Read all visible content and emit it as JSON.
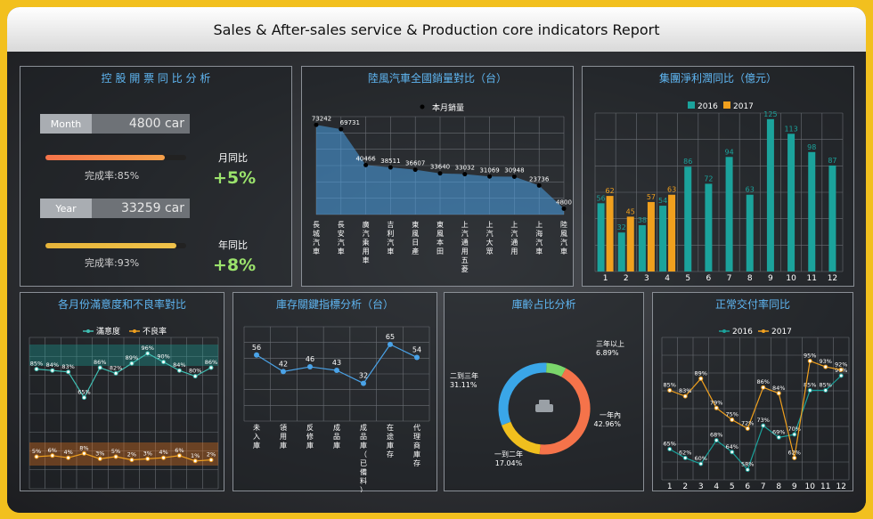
{
  "header": {
    "title": "Sales & After-sales service & Production core indicators Report"
  },
  "kpi": {
    "title": "控 股 開 票 同 比 分 析",
    "month_label": "Month",
    "month_value": "4800 car",
    "month_rate_text": "完成率:85%",
    "month_rate": 0.85,
    "month_yoy_label": "月同比",
    "month_yoy_value": "+5%",
    "year_label": "Year",
    "year_value": "33259 car",
    "year_rate_text": "完成率:93%",
    "year_rate": 0.93,
    "year_yoy_label": "年同比",
    "year_yoy_value": "+8%"
  },
  "sales_chart": {
    "title": "陸風汽車全國銷量對比（台）",
    "chart_data": {
      "type": "area",
      "series": [
        {
          "name": "本月銷量",
          "values": [
            73242,
            69731,
            40466,
            38511,
            36607,
            33640,
            33032,
            31069,
            30948,
            23736,
            4800
          ]
        }
      ],
      "categories": [
        "長城汽車",
        "長安汽車",
        "廣汽乘用車",
        "吉利汽車",
        "東風日產",
        "東風本田",
        "上汽通用五菱",
        "上汽大眾",
        "上汽通用",
        "上海汽車",
        "陸風汽車"
      ],
      "color": "#4aa3e8"
    }
  },
  "profit_chart": {
    "title": "集團淨利潤同比（億元）",
    "chart_data": {
      "type": "bar",
      "categories": [
        "1",
        "2",
        "3",
        "4",
        "5",
        "6",
        "7",
        "8",
        "9",
        "10",
        "11",
        "12"
      ],
      "series": [
        {
          "name": "2016",
          "values": [
            56,
            32,
            38,
            54,
            86,
            72,
            94,
            63,
            125,
            113,
            98,
            87
          ],
          "color": "#1ba39c"
        },
        {
          "name": "2017",
          "values": [
            62,
            45,
            57,
            63,
            null,
            null,
            null,
            null,
            null,
            null,
            null,
            null
          ],
          "color": "#f0a01e"
        }
      ],
      "ylim": [
        0,
        130
      ]
    }
  },
  "satisfaction_chart": {
    "title": "各月份滿意度和不良率對比",
    "chart_data": {
      "type": "line",
      "series": [
        {
          "name": "滿意度",
          "values": [
            85,
            84,
            83,
            65,
            86,
            82,
            89,
            96,
            90,
            84,
            80,
            86
          ],
          "labels": [
            "85%",
            "84%",
            "83%",
            "65%",
            "86%",
            "82%",
            "89%",
            "96%",
            "90%",
            "84%",
            "80%",
            "86%"
          ],
          "color": "#3fbfb3"
        },
        {
          "name": "不良率",
          "values": [
            5,
            6,
            4,
            8,
            3,
            5,
            2,
            3,
            4,
            6,
            1,
            2
          ],
          "labels": [
            "5%",
            "6%",
            "4%",
            "8%",
            "3%",
            "5%",
            "2%",
            "3%",
            "4%",
            "6%",
            "1%",
            "2%"
          ],
          "color": "#f0a01e"
        }
      ]
    }
  },
  "inventory_chart": {
    "title": "庫存關鍵指標分析（台）",
    "chart_data": {
      "type": "line",
      "categories": [
        "未入庫",
        "領用庫",
        "反修庫",
        "成品庫",
        "成品庫（已備料）",
        "在途庫存",
        "代理商庫存"
      ],
      "values": [
        56,
        42,
        46,
        43,
        32,
        65,
        54
      ],
      "color": "#4aa3e8"
    }
  },
  "age_chart": {
    "title": "庫齡占比分析",
    "chart_data": {
      "type": "pie",
      "slices": [
        {
          "label": "三年以上",
          "value": 6.89,
          "pct": "6.89%",
          "color": "#7bd66b"
        },
        {
          "label": "一年內",
          "value": 42.96,
          "pct": "42.96%",
          "color": "#f5734a"
        },
        {
          "label": "一到二年",
          "value": 17.04,
          "pct": "17.04%",
          "color": "#f0bf1e"
        },
        {
          "label": "二到三年",
          "value": 31.11,
          "pct": "31.11%",
          "color": "#3aa6e8"
        }
      ]
    }
  },
  "delivery_chart": {
    "title": "正常交付率同比",
    "chart_data": {
      "type": "line",
      "categories": [
        "1",
        "2",
        "3",
        "4",
        "5",
        "6",
        "7",
        "8",
        "9",
        "10",
        "11",
        "12"
      ],
      "series": [
        {
          "name": "2016",
          "values": [
            65,
            62,
            60,
            68,
            64,
            58,
            73,
            69,
            70,
            85,
            85,
            90
          ],
          "labels": [
            "65%",
            "62%",
            "60%",
            "68%",
            "64%",
            "58%",
            "73%",
            "69%",
            "70%",
            "85%",
            "85%",
            "90%"
          ],
          "color": "#1ba39c"
        },
        {
          "name": "2017",
          "values": [
            85,
            83,
            89,
            79,
            75,
            72,
            86,
            84,
            62,
            95,
            93,
            92
          ],
          "labels": [
            "85%",
            "83%",
            "89%",
            "79%",
            "75%",
            "72%",
            "86%",
            "84%",
            "62%",
            "95%",
            "93%",
            "92%"
          ],
          "color": "#f0a01e"
        }
      ]
    }
  }
}
